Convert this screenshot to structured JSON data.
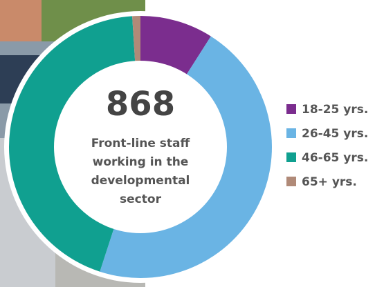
{
  "chart_data": {
    "type": "donut",
    "title": "868",
    "subtitle_lines": [
      "Front-line staff",
      "working in the",
      "developmental",
      "sector"
    ],
    "categories": [
      "18-25 yrs.",
      "26-45 yrs.",
      "46-65 yrs.",
      "65+ yrs."
    ],
    "values": [
      9,
      46,
      44,
      1
    ],
    "colors": [
      "#7b2d8e",
      "#6ab4e4",
      "#10a090",
      "#b08a78"
    ]
  }
}
